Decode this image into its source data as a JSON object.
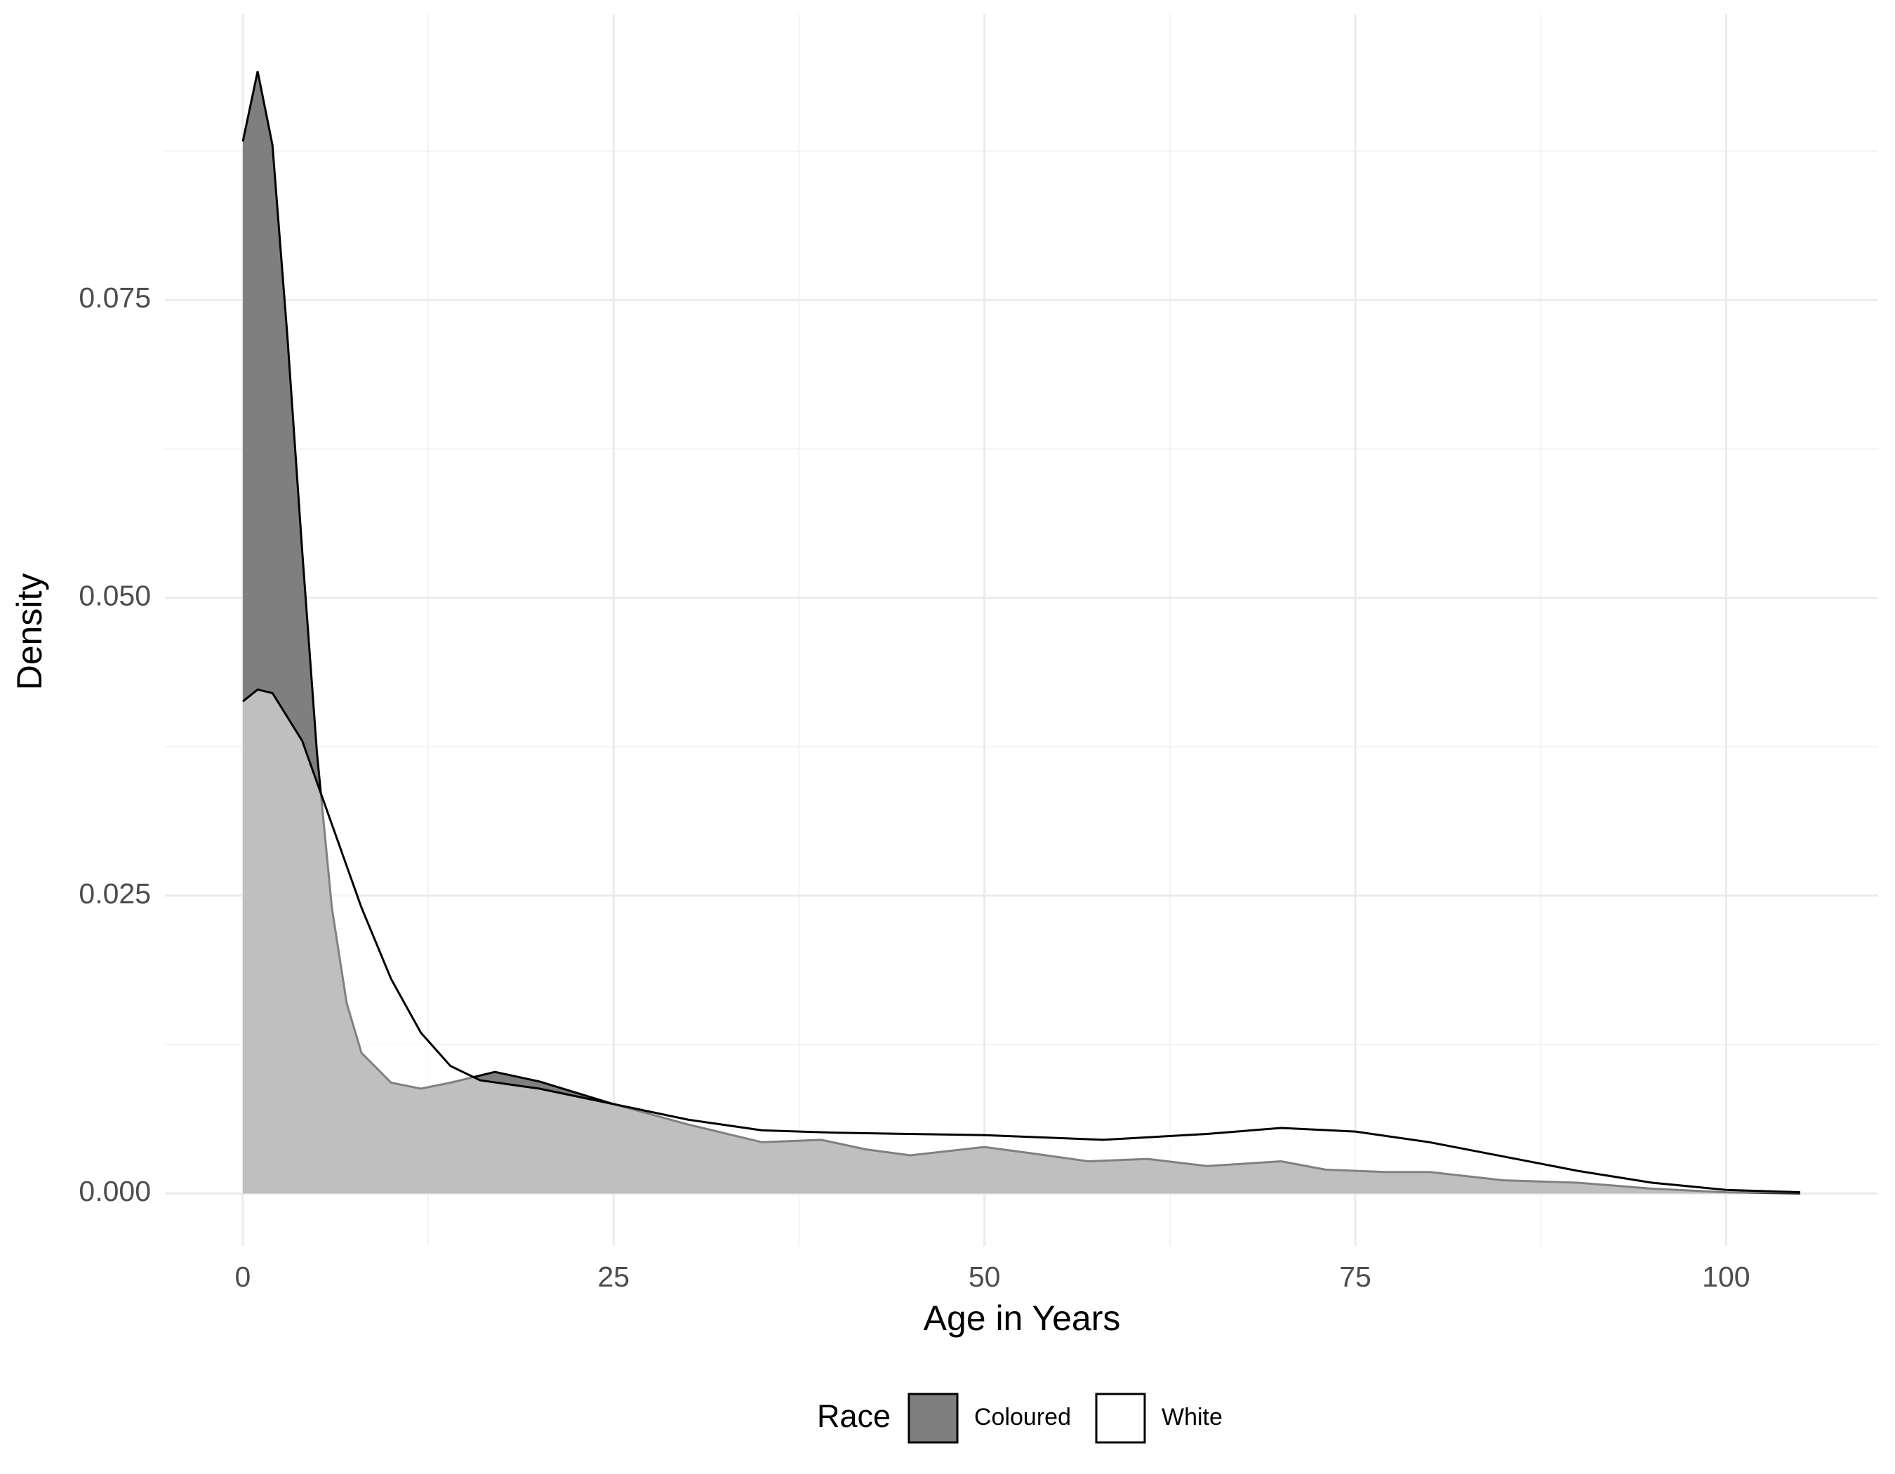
{
  "chart_data": {
    "type": "density",
    "x_label": "Age in Years",
    "y_label": "Density",
    "xlim": [
      -5.25,
      110.25
    ],
    "ylim": [
      -0.0044,
      0.099
    ],
    "xticks": [
      0,
      25,
      50,
      75,
      100
    ],
    "yticks": [
      {
        "value": 0,
        "label": "0.000"
      },
      {
        "value": 0.025,
        "label": "0.025"
      },
      {
        "value": 0.05,
        "label": "0.050"
      },
      {
        "value": 0.075,
        "label": "0.075"
      }
    ],
    "xminorticks": [
      12.5,
      37.5,
      62.5,
      87.5
    ],
    "yminorticks": [
      0.0125,
      0.0375,
      0.0625,
      0.0875
    ],
    "grid": true,
    "legend_title": "Race",
    "legend_position": "bottom",
    "series": [
      {
        "name": "Coloured",
        "color": "#7f7f7f",
        "x": [
          0,
          1,
          2,
          3,
          4,
          5,
          6,
          7,
          8,
          10,
          12,
          14,
          17,
          20,
          25,
          30,
          35,
          39,
          42,
          45,
          50,
          53,
          57,
          61,
          65,
          70,
          73,
          77,
          80,
          85,
          90,
          95,
          100,
          105
        ],
        "values": [
          0.0883,
          0.0942,
          0.088,
          0.072,
          0.054,
          0.037,
          0.024,
          0.016,
          0.0118,
          0.0093,
          0.0088,
          0.0093,
          0.0102,
          0.0094,
          0.0075,
          0.0058,
          0.0043,
          0.0045,
          0.0037,
          0.0032,
          0.0039,
          0.0034,
          0.0027,
          0.0029,
          0.0023,
          0.0027,
          0.002,
          0.0018,
          0.0018,
          0.0011,
          0.0009,
          0.0004,
          0.0001,
          0
        ]
      },
      {
        "name": "White",
        "color": "#ffffff",
        "x": [
          0,
          1,
          2,
          4,
          6,
          8,
          10,
          12,
          14,
          16,
          20,
          25,
          30,
          35,
          40,
          50,
          58,
          65,
          70,
          75,
          80,
          85,
          90,
          95,
          100,
          105
        ],
        "values": [
          0.0413,
          0.0423,
          0.042,
          0.038,
          0.031,
          0.024,
          0.018,
          0.0135,
          0.0107,
          0.0095,
          0.0088,
          0.0075,
          0.0062,
          0.0053,
          0.0051,
          0.0049,
          0.0045,
          0.005,
          0.0055,
          0.0052,
          0.0043,
          0.0031,
          0.0019,
          0.0009,
          0.0003,
          0.0001
        ]
      }
    ]
  }
}
